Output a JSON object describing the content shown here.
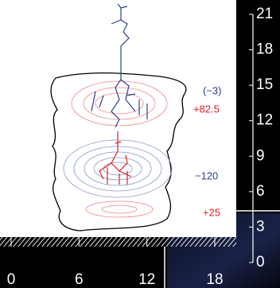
{
  "chart_data": {
    "type": "figure",
    "xlim": [
      0,
      18
    ],
    "xticks": [
      0,
      6,
      12,
      18
    ],
    "ylim": [
      0,
      21
    ],
    "yticks": [
      0,
      3,
      6,
      9,
      12,
      15,
      18,
      21
    ],
    "annotations": [
      {
        "text": "(−3)",
        "color": "#2b3f8f"
      },
      {
        "text": "+82.5",
        "color": "#e02020"
      },
      {
        "text": "−120",
        "color": "#2b3f8f"
      },
      {
        "text": "+25",
        "color": "#e02020"
      }
    ]
  }
}
